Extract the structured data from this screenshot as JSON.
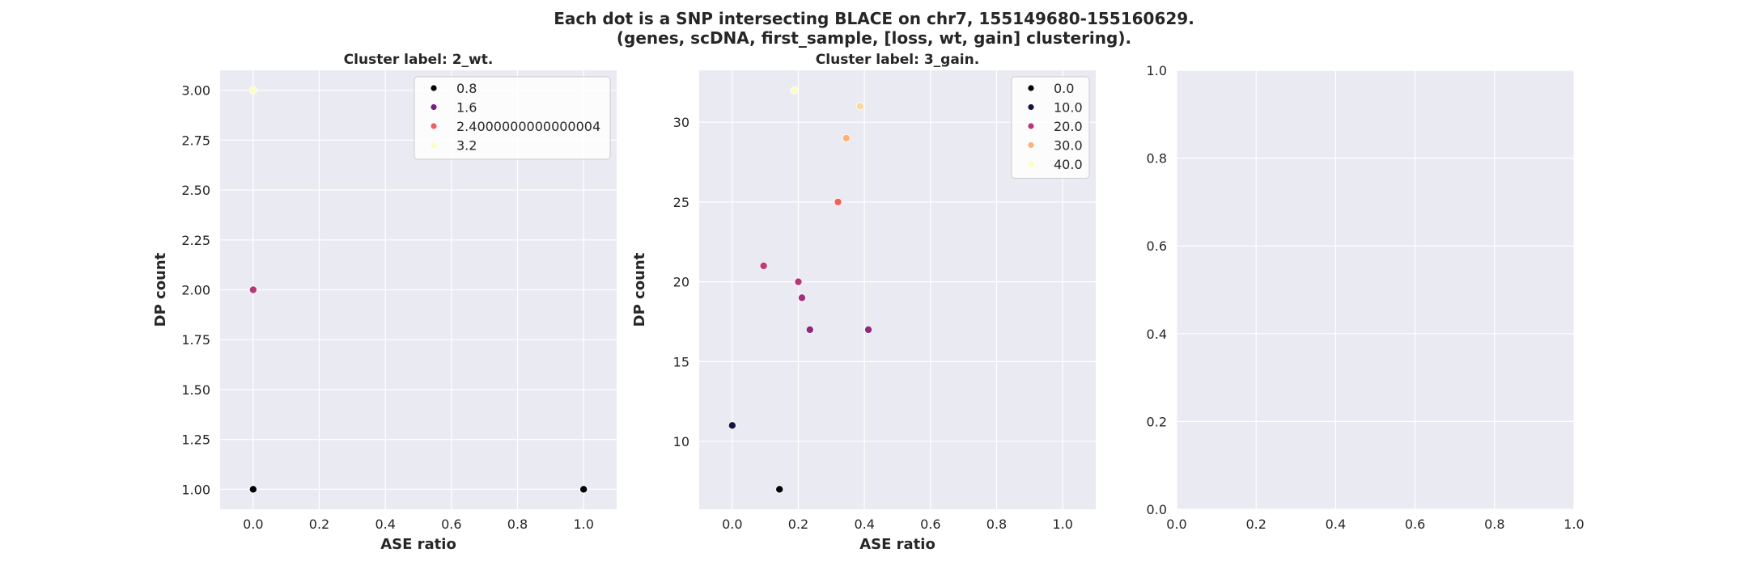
{
  "figure": {
    "title_line1": "Each dot is a SNP intersecting BLACE on chr7, 155149680-155160629.",
    "title_line2": "(genes, scDNA, first_sample, [loss, wt, gain] clustering)."
  },
  "colors": {
    "panel_background": "#eaeaf2",
    "grid": "#ffffff",
    "palette": "magma"
  },
  "chart_data": [
    {
      "type": "scatter",
      "title": "Cluster label: 2_wt.",
      "xlabel": "ASE ratio",
      "ylabel": "DP count",
      "xlim": [
        -0.1,
        1.1
      ],
      "ylim": [
        0.9,
        3.1
      ],
      "xticks": [
        0.0,
        0.2,
        0.4,
        0.6,
        0.8,
        1.0
      ],
      "xtick_labels": [
        "0.0",
        "0.2",
        "0.4",
        "0.6",
        "0.8",
        "1.0"
      ],
      "yticks": [
        1.0,
        1.25,
        1.5,
        1.75,
        2.0,
        2.25,
        2.5,
        2.75,
        3.0
      ],
      "ytick_labels": [
        "1.00",
        "1.25",
        "1.50",
        "1.75",
        "2.00",
        "2.25",
        "2.50",
        "2.75",
        "3.00"
      ],
      "grid": true,
      "legend_placement": "top-right",
      "legend": [
        {
          "label": "0.8",
          "color": "#000004"
        },
        {
          "label": "1.6",
          "color": "#721f81"
        },
        {
          "label": "2.4000000000000004",
          "color": "#f1605d"
        },
        {
          "label": "3.2",
          "color": "#fcfdbf"
        }
      ],
      "points": [
        {
          "x": 0.0,
          "y": 1.0,
          "color": "#000004"
        },
        {
          "x": 1.0,
          "y": 1.0,
          "color": "#000004"
        },
        {
          "x": 0.0,
          "y": 2.0,
          "color": "#b73779"
        },
        {
          "x": 0.0,
          "y": 3.0,
          "color": "#fcfdbf"
        }
      ]
    },
    {
      "type": "scatter",
      "title": "Cluster label: 3_gain.",
      "xlabel": "ASE ratio",
      "ylabel": "DP count",
      "xlim": [
        -0.1,
        1.1
      ],
      "ylim": [
        5.75,
        33.25
      ],
      "xticks": [
        0.0,
        0.2,
        0.4,
        0.6,
        0.8,
        1.0
      ],
      "xtick_labels": [
        "0.0",
        "0.2",
        "0.4",
        "0.6",
        "0.8",
        "1.0"
      ],
      "yticks": [
        10,
        15,
        20,
        25,
        30
      ],
      "ytick_labels": [
        "10",
        "15",
        "20",
        "25",
        "30"
      ],
      "grid": true,
      "legend_placement": "top-right",
      "legend": [
        {
          "label": "0.0",
          "color": "#000004"
        },
        {
          "label": "10.0",
          "color": "#1a1042"
        },
        {
          "label": "20.0",
          "color": "#b73779"
        },
        {
          "label": "30.0",
          "color": "#feb078"
        },
        {
          "label": "40.0",
          "color": "#fcfdbf"
        }
      ],
      "points": [
        {
          "x": 0.143,
          "y": 7,
          "color": "#000004"
        },
        {
          "x": 0.0,
          "y": 11,
          "color": "#1a1042"
        },
        {
          "x": 0.235,
          "y": 17,
          "color": "#8c2981"
        },
        {
          "x": 0.412,
          "y": 17,
          "color": "#8c2981"
        },
        {
          "x": 0.211,
          "y": 19,
          "color": "#a3307e"
        },
        {
          "x": 0.2,
          "y": 20,
          "color": "#b73779"
        },
        {
          "x": 0.095,
          "y": 21,
          "color": "#c03a76"
        },
        {
          "x": 0.32,
          "y": 25,
          "color": "#f1605d"
        },
        {
          "x": 0.345,
          "y": 29,
          "color": "#feb078"
        },
        {
          "x": 0.387,
          "y": 31,
          "color": "#fed799"
        },
        {
          "x": 0.188,
          "y": 32,
          "color": "#fcfdbf"
        }
      ]
    },
    {
      "type": "scatter",
      "title": "",
      "xlabel": "",
      "ylabel": "",
      "xlim": [
        0.0,
        1.0
      ],
      "ylim": [
        0.0,
        1.0
      ],
      "xticks": [
        0.0,
        0.2,
        0.4,
        0.6,
        0.8,
        1.0
      ],
      "xtick_labels": [
        "0.0",
        "0.2",
        "0.4",
        "0.6",
        "0.8",
        "1.0"
      ],
      "yticks": [
        0.0,
        0.2,
        0.4,
        0.6,
        0.8,
        1.0
      ],
      "ytick_labels": [
        "0.0",
        "0.2",
        "0.4",
        "0.6",
        "0.8",
        "1.0"
      ],
      "grid": true,
      "legend": [],
      "points": []
    }
  ]
}
